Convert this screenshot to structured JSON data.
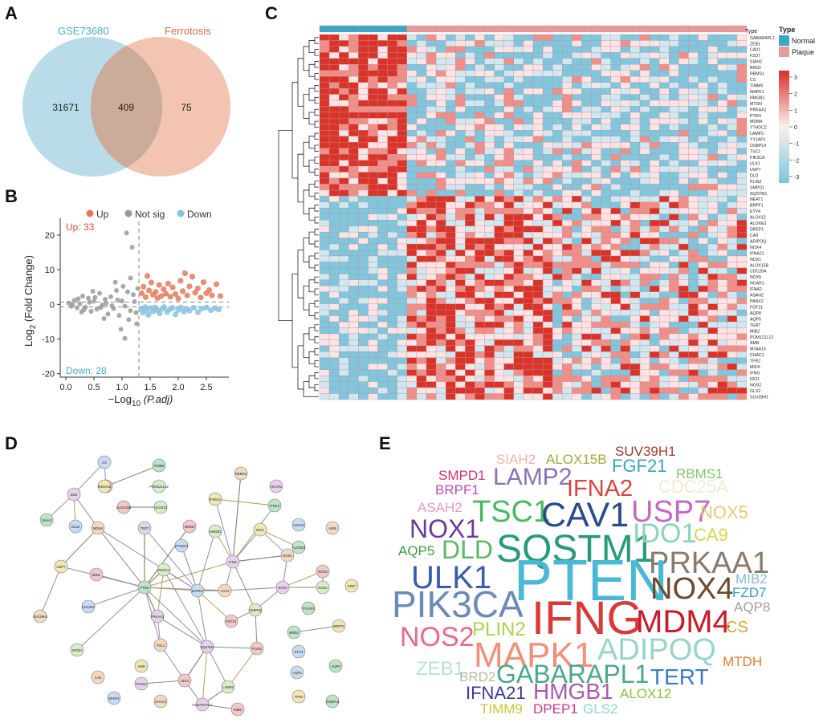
{
  "panels": {
    "a": "A",
    "b": "B",
    "c": "C",
    "d": "D",
    "e": "E"
  },
  "colors": {
    "venn_left": "#a9d3e5",
    "venn_right": "#f0b59e",
    "venn_left_label": "#4aa8cd",
    "venn_right_label": "#e06a4a",
    "up": "#e07b5a",
    "notsig": "#9a9a9a",
    "down": "#85c3df",
    "heat_hi": "#d73027",
    "heat_mid": "#fdeef0",
    "heat_lo": "#7cc6dd",
    "type_normal": "#3aa6c6",
    "type_plaque": "#e39ba0"
  },
  "venn": {
    "left_label": "GSE73680",
    "right_label": "Ferrotosis",
    "left_only": "31671",
    "intersection": "409",
    "right_only": "75"
  },
  "chart_data": [
    {
      "type": "scatter",
      "title": "",
      "xlabel": "−Log10 (P.adj)",
      "ylabel": "Log2 (Fold Change)",
      "xlabel_main": "−Log",
      "xlabel_sub": "10",
      "xlabel_rest": " (P.adj)",
      "ylabel_main": "Log",
      "ylabel_sub": "2",
      "ylabel_rest": " (Fold Change)",
      "xlim": [
        -0.1,
        2.9
      ],
      "ylim": [
        -21,
        23
      ],
      "xticks": [
        0.0,
        0.5,
        1.0,
        1.5,
        2.0,
        2.5
      ],
      "xtick_labels": [
        "0.0",
        "0.5",
        "1.0",
        "1.5",
        "2.0",
        "2.5"
      ],
      "yticks": [
        -20,
        -10,
        0,
        10,
        20
      ],
      "ytick_labels": [
        "-20",
        "-10",
        "0",
        "10",
        "20"
      ],
      "threshold_x": 1.3,
      "threshold_y": [
        0,
        0
      ],
      "legend": [
        "Up",
        "Not sig",
        "Down"
      ],
      "up_label": "Up: 33",
      "down_label": "Down: 28",
      "series": [
        {
          "name": "Up",
          "points": [
            [
              1.35,
              3.2
            ],
            [
              1.38,
              5.1
            ],
            [
              1.42,
              2.1
            ],
            [
              1.45,
              8.2
            ],
            [
              1.48,
              4.0
            ],
            [
              1.52,
              6.3
            ],
            [
              1.55,
              2.8
            ],
            [
              1.6,
              3.6
            ],
            [
              1.63,
              1.8
            ],
            [
              1.66,
              5.6
            ],
            [
              1.7,
              2.4
            ],
            [
              1.74,
              4.4
            ],
            [
              1.78,
              3.1
            ],
            [
              1.82,
              6.0
            ],
            [
              1.86,
              2.2
            ],
            [
              1.9,
              4.9
            ],
            [
              1.95,
              3.0
            ],
            [
              2.0,
              1.7
            ],
            [
              2.04,
              6.8
            ],
            [
              2.08,
              3.8
            ],
            [
              2.12,
              9.0
            ],
            [
              2.16,
              2.6
            ],
            [
              2.2,
              5.2
            ],
            [
              2.25,
              8.0
            ],
            [
              2.3,
              3.4
            ],
            [
              2.35,
              4.6
            ],
            [
              2.4,
              2.0
            ],
            [
              2.45,
              6.4
            ],
            [
              2.5,
              3.2
            ],
            [
              2.55,
              4.1
            ],
            [
              2.6,
              2.6
            ],
            [
              2.68,
              5.8
            ],
            [
              2.75,
              2.4
            ]
          ]
        },
        {
          "name": "Not sig",
          "points": [
            [
              0.05,
              0.4
            ],
            [
              0.1,
              -0.6
            ],
            [
              0.15,
              1.2
            ],
            [
              0.2,
              -1.0
            ],
            [
              0.25,
              0.2
            ],
            [
              0.3,
              2.4
            ],
            [
              0.35,
              -0.8
            ],
            [
              0.4,
              1.8
            ],
            [
              0.45,
              -2.0
            ],
            [
              0.5,
              0.9
            ],
            [
              0.55,
              -1.4
            ],
            [
              0.6,
              3.2
            ],
            [
              0.65,
              -0.2
            ],
            [
              0.7,
              1.5
            ],
            [
              0.75,
              -2.8
            ],
            [
              0.8,
              2.2
            ],
            [
              0.85,
              -1.2
            ],
            [
              0.9,
              4.0
            ],
            [
              0.95,
              -3.2
            ],
            [
              1.0,
              1.0
            ],
            [
              1.05,
              -0.5
            ],
            [
              1.1,
              3.6
            ],
            [
              1.15,
              -1.8
            ],
            [
              1.2,
              2.8
            ],
            [
              1.25,
              -2.4
            ],
            [
              0.12,
              0.0
            ],
            [
              0.22,
              1.6
            ],
            [
              0.32,
              -1.6
            ],
            [
              0.42,
              0.6
            ],
            [
              0.52,
              2.0
            ],
            [
              0.62,
              -0.9
            ],
            [
              0.72,
              0.3
            ],
            [
              0.82,
              -0.4
            ],
            [
              0.92,
              1.3
            ],
            [
              1.02,
              5.2
            ],
            [
              1.12,
              -4.4
            ],
            [
              1.22,
              0.8
            ],
            [
              1.08,
              20.6
            ],
            [
              1.18,
              16.5
            ],
            [
              1.05,
              -9.8
            ],
            [
              0.98,
              -7.2
            ],
            [
              1.15,
              7.6
            ],
            [
              0.88,
              6.4
            ],
            [
              0.68,
              -4.1
            ],
            [
              0.48,
              3.8
            ],
            [
              0.28,
              -2.2
            ],
            [
              1.28,
              4.6
            ],
            [
              1.26,
              -5.6
            ]
          ]
        },
        {
          "name": "Down",
          "points": [
            [
              1.34,
              -1.2
            ],
            [
              1.37,
              -2.4
            ],
            [
              1.41,
              -0.8
            ],
            [
              1.44,
              -1.6
            ],
            [
              1.47,
              -3.0
            ],
            [
              1.51,
              -1.1
            ],
            [
              1.55,
              -2.0
            ],
            [
              1.59,
              -0.9
            ],
            [
              1.63,
              -1.7
            ],
            [
              1.67,
              -2.6
            ],
            [
              1.71,
              -1.3
            ],
            [
              1.75,
              -0.8
            ],
            [
              1.8,
              -2.2
            ],
            [
              1.85,
              -1.4
            ],
            [
              1.9,
              -1.0
            ],
            [
              1.95,
              -2.9
            ],
            [
              2.0,
              -1.6
            ],
            [
              2.05,
              -0.9
            ],
            [
              2.1,
              -2.1
            ],
            [
              2.15,
              -1.3
            ],
            [
              2.2,
              -1.8
            ],
            [
              2.28,
              -1.0
            ],
            [
              2.35,
              -2.3
            ],
            [
              2.42,
              -1.2
            ],
            [
              2.5,
              -0.9
            ],
            [
              2.58,
              -1.7
            ],
            [
              2.66,
              -1.1
            ],
            [
              2.72,
              -1.5
            ]
          ]
        }
      ]
    },
    {
      "type": "heatmap",
      "title": "",
      "type_legend_title": "Type",
      "groups": [
        "Normal",
        "Plaque"
      ],
      "annotation_label": "Type",
      "n_normal": 9,
      "n_plaque": 35,
      "scale_ticks": [
        3,
        2,
        1,
        0,
        -1,
        -2,
        -3
      ],
      "genes": [
        "GABARAPL1",
        "ZEB1",
        "CAV1",
        "FZD7",
        "SIAH2",
        "BRD2",
        "RBMS1",
        "CS",
        "TIMM9",
        "MAPK1",
        "HMGB1",
        "MTDH",
        "PRKAA1",
        "PTEN",
        "MDM4",
        "YTHDC2",
        "LAMP2",
        "YY1AP1",
        "OSBPL9",
        "TSC1",
        "PIK3CA",
        "ULK1",
        "USP7",
        "DLD",
        "PLIN2",
        "SMPD1",
        "SQSTM1",
        "NEAT1",
        "BRPF1",
        "ETV4",
        "ALOX12",
        "ALOXE3",
        "DPEP1",
        "CA9",
        "ADIPOQ",
        "NOX4",
        "IFNA21",
        "NOX1",
        "ALOX15B",
        "CDC25A",
        "NOX5",
        "HCAR1",
        "IFNA2",
        "ASAH2",
        "PANX2",
        "FGF21",
        "AQP8",
        "AQP5",
        "TERT",
        "MIB2",
        "POM121L12",
        "AMN",
        "MS4A15",
        "CHAC1",
        "TFR2",
        "MIOX",
        "IFNG",
        "IDO1",
        "NOS2",
        "GLS2",
        "SUV39H1"
      ]
    }
  ],
  "network": {
    "nodes": [
      {
        "id": "TIMM9"
      },
      {
        "id": "CS"
      },
      {
        "id": "RBMS1"
      },
      {
        "id": "HCAR1"
      },
      {
        "id": "MIOX"
      },
      {
        "id": "POM121L12"
      },
      {
        "id": "IFNA21"
      },
      {
        "id": "IFNA2"
      },
      {
        "id": "ASAH2"
      },
      {
        "id": "AMN"
      },
      {
        "id": "DLD"
      },
      {
        "id": "ALOX15B"
      },
      {
        "id": "ALOX12"
      },
      {
        "id": "MS4A15"
      },
      {
        "id": "SIAH2"
      },
      {
        "id": "GLS2"
      },
      {
        "id": "MDM4"
      },
      {
        "id": "TERT"
      },
      {
        "id": "MDM2"
      },
      {
        "id": "HMGB1"
      },
      {
        "id": "IDO1"
      },
      {
        "id": "ALOXE3"
      },
      {
        "id": "YTHDC2"
      },
      {
        "id": "NOS2"
      },
      {
        "id": "IFNG"
      },
      {
        "id": "ZEB1"
      },
      {
        "id": "PIK3CA"
      },
      {
        "id": "USP7"
      },
      {
        "id": "PTEN"
      },
      {
        "id": "MAPK1"
      },
      {
        "id": "CAV1"
      },
      {
        "id": "NOX4"
      },
      {
        "id": "NOX5"
      },
      {
        "id": "NOX1"
      },
      {
        "id": "FZD7"
      },
      {
        "id": "YY1AP1"
      },
      {
        "id": "CDC25A"
      },
      {
        "id": "SUV39H1"
      },
      {
        "id": "PRKAA1"
      },
      {
        "id": "FGF21"
      },
      {
        "id": "ADIPOQ"
      },
      {
        "id": "BRPF1"
      },
      {
        "id": "BRD2"
      },
      {
        "id": "ETV4"
      },
      {
        "id": "TSC1"
      },
      {
        "id": "SQSTM1"
      },
      {
        "id": "PLIN2"
      },
      {
        "id": "MTDH"
      },
      {
        "id": "AMN2"
      },
      {
        "id": "AQP8"
      },
      {
        "id": "AQP5"
      },
      {
        "id": "CA9"
      },
      {
        "id": "PANX2"
      },
      {
        "id": "ULK1"
      },
      {
        "id": "LAMP2"
      },
      {
        "id": "TFR2"
      },
      {
        "id": "OSBPL9"
      },
      {
        "id": "DPEP1"
      },
      {
        "id": "CHAC1"
      },
      {
        "id": "GABARAPL1"
      },
      {
        "id": "MIB2"
      }
    ]
  },
  "wordcloud": {
    "words": [
      {
        "text": "SIAH2",
        "color": "#e8b4a8"
      },
      {
        "text": "ALOX15B",
        "color": "#a5a83a"
      },
      {
        "text": "SUV39H1",
        "color": "#9e3b2a"
      },
      {
        "text": "SMPD1",
        "color": "#d6326e"
      },
      {
        "text": "LAMP2",
        "color": "#8a6fb8"
      },
      {
        "text": "FGF21",
        "color": "#3aa3b8"
      },
      {
        "text": "RBMS1",
        "color": "#8ac26a"
      },
      {
        "text": "BRPF1",
        "color": "#c24aa8"
      },
      {
        "text": "IFNA2",
        "color": "#d8443e"
      },
      {
        "text": "CDC25A",
        "color": "#f0ead0"
      },
      {
        "text": "ASAH2",
        "color": "#e89ab8"
      },
      {
        "text": "TSC1",
        "color": "#4ab86a"
      },
      {
        "text": "CAV1",
        "color": "#2a4a8a"
      },
      {
        "text": "USP7",
        "color": "#c26ac2"
      },
      {
        "text": "NOX5",
        "color": "#e8c87a"
      },
      {
        "text": "NOX1",
        "color": "#6a3a9a"
      },
      {
        "text": "SQSTM1",
        "color": "#2a9a7a"
      },
      {
        "text": "IDO1",
        "color": "#8ad4b8"
      },
      {
        "text": "CA9",
        "color": "#d4d44a"
      },
      {
        "text": "AQP5",
        "color": "#3a9a4a"
      },
      {
        "text": "DLD",
        "color": "#5ab86a"
      },
      {
        "text": "PRKAA1",
        "color": "#8a7a6a"
      },
      {
        "text": "ULK1",
        "color": "#3a5aaa"
      },
      {
        "text": "PTEN",
        "color": "#4ab8d4"
      },
      {
        "text": "NOX4",
        "color": "#6a4a2a"
      },
      {
        "text": "MIB2",
        "color": "#8ab8d4"
      },
      {
        "text": "PIK3CA",
        "color": "#6a8ab8"
      },
      {
        "text": "FZD7",
        "color": "#3a9ac8"
      },
      {
        "text": "AQP8",
        "color": "#a0a0a0"
      },
      {
        "text": "NOS2",
        "color": "#e86a8a"
      },
      {
        "text": "IFNG",
        "color": "#d83a3a"
      },
      {
        "text": "MDM4",
        "color": "#c81a2a"
      },
      {
        "text": "CS",
        "color": "#d8a82a"
      },
      {
        "text": "PLIN2",
        "color": "#aad44a"
      },
      {
        "text": "MAPK1",
        "color": "#f0907a"
      },
      {
        "text": "ADIPOQ",
        "color": "#9ad4c8"
      },
      {
        "text": "MTDH",
        "color": "#e87a2a"
      },
      {
        "text": "ZEB1",
        "color": "#b8e0d8"
      },
      {
        "text": "GABARAPL1",
        "color": "#4aa88a"
      },
      {
        "text": "TERT",
        "color": "#3a7ac8"
      },
      {
        "text": "BRD2",
        "color": "#b8b8a0"
      },
      {
        "text": "IFNA21",
        "color": "#3a3a9a"
      },
      {
        "text": "HMGB1",
        "color": "#a85aaa"
      },
      {
        "text": "ALOX12",
        "color": "#8ac23a"
      },
      {
        "text": "TIMM9",
        "color": "#c8c83a"
      },
      {
        "text": "DPEP1",
        "color": "#c83a8a"
      },
      {
        "text": "GLS2",
        "color": "#8ad4d4"
      }
    ]
  }
}
